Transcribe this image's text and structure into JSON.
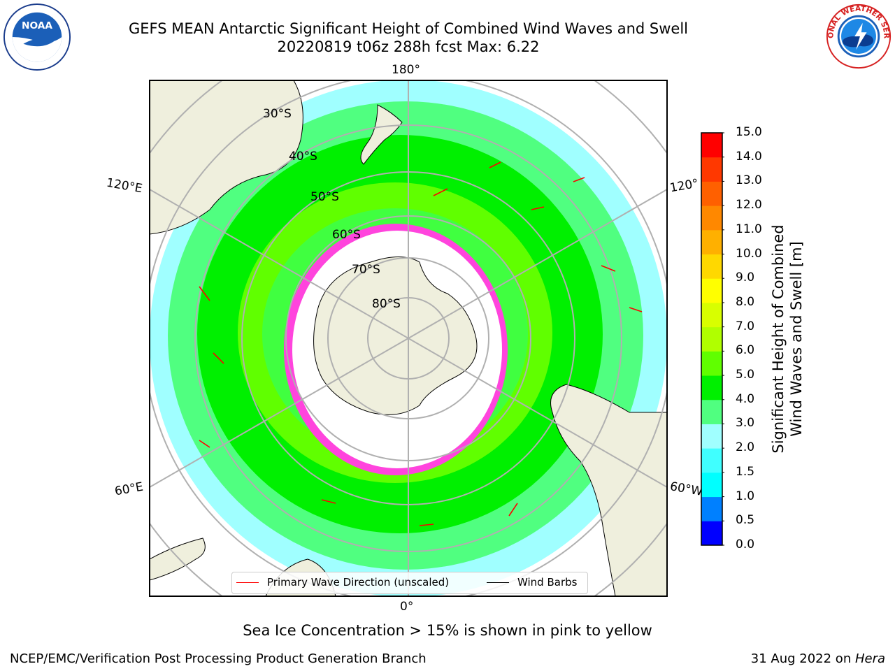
{
  "header": {
    "title_line1": "GEFS MEAN Antarctic Significant Height of Combined Wind Waves and Swell",
    "title_line2": "20220819 t06z 288h fcst   Max: 6.22"
  },
  "logos": {
    "left": "NOAA",
    "right": "NATIONAL WEATHER SERVICE"
  },
  "map": {
    "projection": "south-polar-stereographic",
    "longitude_labels": {
      "top": "180°",
      "bottom": "0°",
      "left_upper": "120°E",
      "left_lower": "60°E",
      "right_upper": "120°",
      "right_lower": "60°W"
    },
    "latitude_labels": [
      "30°S",
      "40°S",
      "50°S",
      "60°S",
      "70°S",
      "80°S"
    ],
    "legend": {
      "primary_wave": "Primary Wave Direction (unscaled)",
      "wind_barbs": "Wind Barbs",
      "primary_wave_color": "#ff0000",
      "wind_barbs_color": "#000000"
    }
  },
  "colorbar": {
    "label_line1": "Significant Height of Combined",
    "label_line2": "Wind Waves and Swell [m]",
    "ticks": [
      "0.0",
      "0.5",
      "1.0",
      "1.5",
      "2.0",
      "3.0",
      "4.0",
      "5.0",
      "6.0",
      "7.0",
      "8.0",
      "9.0",
      "10.0",
      "11.0",
      "12.0",
      "13.0",
      "14.0",
      "15.0"
    ],
    "colors": [
      "#0000ff",
      "#0080ff",
      "#00ffff",
      "#40ffff",
      "#a0ffff",
      "#50ff80",
      "#00f000",
      "#60ff00",
      "#b0ff00",
      "#d8ff00",
      "#ffff00",
      "#ffd800",
      "#ffb000",
      "#ff8800",
      "#ff6000",
      "#ff3800",
      "#ff0000"
    ]
  },
  "note": "Sea Ice Concentration > 15% is shown in pink to yellow",
  "footer": {
    "left": "NCEP/EMC/Verification Post Processing Product Generation Branch",
    "right_date": "31 Aug 2022 on ",
    "right_machine": "Hera"
  }
}
